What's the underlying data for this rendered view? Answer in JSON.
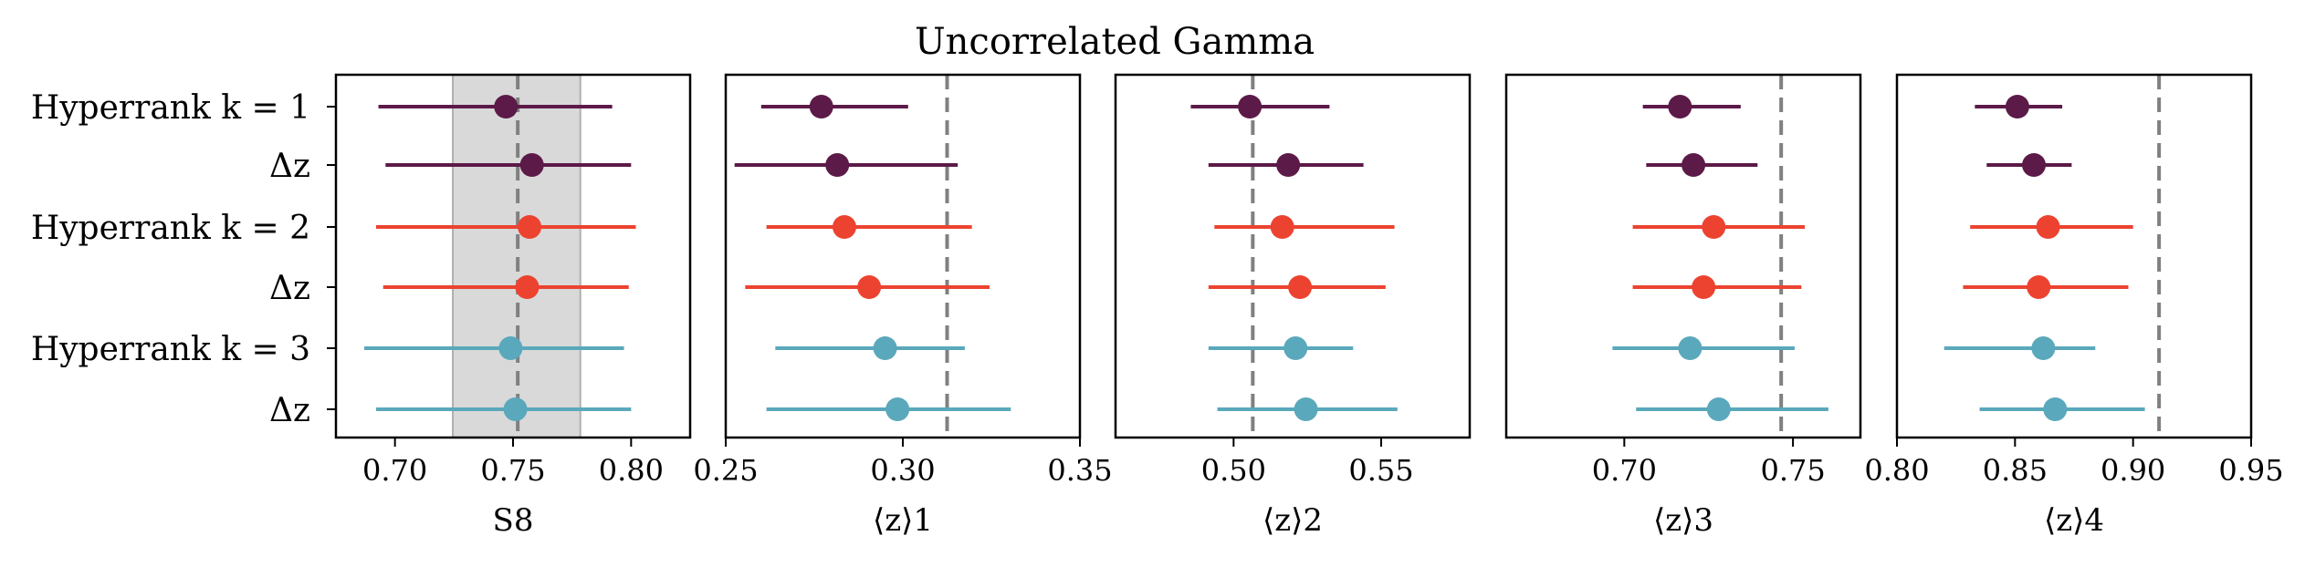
{
  "chart_data": {
    "type": "errorbar",
    "title": "Uncorrelated Gamma",
    "row_labels": [
      "Hyperrank k = 1",
      "Δz",
      "Hyperrank k = 2",
      "Δz",
      "Hyperrank k = 3",
      "Δz"
    ],
    "series_colors": [
      "#5c1a48",
      "#5c1a48",
      "#ec4330",
      "#ec4330",
      "#5aa8bb",
      "#5aa8bb"
    ],
    "band_color": "#d9d9d9",
    "reference_color": "#808080",
    "panels": [
      {
        "xlabel": "S8",
        "xlim": [
          0.675,
          0.825
        ],
        "xticks": [
          0.7,
          0.75,
          0.8
        ],
        "xtick_labels": [
          "0.70",
          "0.75",
          "0.80"
        ],
        "reference": 0.752,
        "band": [
          0.7245,
          0.7785
        ],
        "points": [
          {
            "value": 0.747,
            "low": 0.693,
            "high": 0.792
          },
          {
            "value": 0.758,
            "low": 0.696,
            "high": 0.8
          },
          {
            "value": 0.757,
            "low": 0.692,
            "high": 0.802
          },
          {
            "value": 0.756,
            "low": 0.695,
            "high": 0.799
          },
          {
            "value": 0.749,
            "low": 0.687,
            "high": 0.797
          },
          {
            "value": 0.751,
            "low": 0.692,
            "high": 0.8
          }
        ]
      },
      {
        "xlabel": "⟨z⟩1",
        "xlim": [
          0.25,
          0.35
        ],
        "xticks": [
          0.25,
          0.3,
          0.35
        ],
        "xtick_labels": [
          "0.25",
          "0.30",
          "0.35"
        ],
        "reference": 0.3125,
        "band": null,
        "points": [
          {
            "value": 0.277,
            "low": 0.26,
            "high": 0.3015
          },
          {
            "value": 0.2815,
            "low": 0.2525,
            "high": 0.3155
          },
          {
            "value": 0.2835,
            "low": 0.2615,
            "high": 0.3195
          },
          {
            "value": 0.2905,
            "low": 0.2555,
            "high": 0.3245
          },
          {
            "value": 0.295,
            "low": 0.264,
            "high": 0.3175
          },
          {
            "value": 0.2985,
            "low": 0.2615,
            "high": 0.3305
          }
        ]
      },
      {
        "xlabel": "⟨z⟩2",
        "xlim": [
          0.46,
          0.58
        ],
        "xticks": [
          0.5,
          0.55
        ],
        "xtick_labels": [
          "0.50",
          "0.55"
        ],
        "reference": 0.5065,
        "band": null,
        "points": [
          {
            "value": 0.5055,
            "low": 0.4855,
            "high": 0.5325
          },
          {
            "value": 0.5185,
            "low": 0.4915,
            "high": 0.544
          },
          {
            "value": 0.5165,
            "low": 0.4935,
            "high": 0.5545
          },
          {
            "value": 0.5225,
            "low": 0.4915,
            "high": 0.5515
          },
          {
            "value": 0.521,
            "low": 0.4915,
            "high": 0.5405
          },
          {
            "value": 0.5245,
            "low": 0.4945,
            "high": 0.5555
          }
        ]
      },
      {
        "xlabel": "⟨z⟩3",
        "xlim": [
          0.665,
          0.77
        ],
        "xticks": [
          0.7,
          0.75
        ],
        "xtick_labels": [
          "0.70",
          "0.75"
        ],
        "reference": 0.7465,
        "band": null,
        "points": [
          {
            "value": 0.7165,
            "low": 0.7055,
            "high": 0.7345
          },
          {
            "value": 0.7205,
            "low": 0.7065,
            "high": 0.7395
          },
          {
            "value": 0.7265,
            "low": 0.7025,
            "high": 0.7535
          },
          {
            "value": 0.7235,
            "low": 0.7025,
            "high": 0.7525
          },
          {
            "value": 0.7195,
            "low": 0.6965,
            "high": 0.7505
          },
          {
            "value": 0.728,
            "low": 0.7035,
            "high": 0.7605
          }
        ]
      },
      {
        "xlabel": "⟨z⟩4",
        "xlim": [
          0.8,
          0.95
        ],
        "xticks": [
          0.8,
          0.85,
          0.9,
          0.95
        ],
        "xtick_labels": [
          "0.80",
          "0.85",
          "0.90",
          "0.95"
        ],
        "reference": 0.911,
        "band": null,
        "points": [
          {
            "value": 0.851,
            "low": 0.833,
            "high": 0.87
          },
          {
            "value": 0.858,
            "low": 0.838,
            "high": 0.874
          },
          {
            "value": 0.864,
            "low": 0.831,
            "high": 0.9
          },
          {
            "value": 0.86,
            "low": 0.828,
            "high": 0.898
          },
          {
            "value": 0.862,
            "low": 0.82,
            "high": 0.884
          },
          {
            "value": 0.867,
            "low": 0.835,
            "high": 0.905
          }
        ]
      }
    ]
  }
}
